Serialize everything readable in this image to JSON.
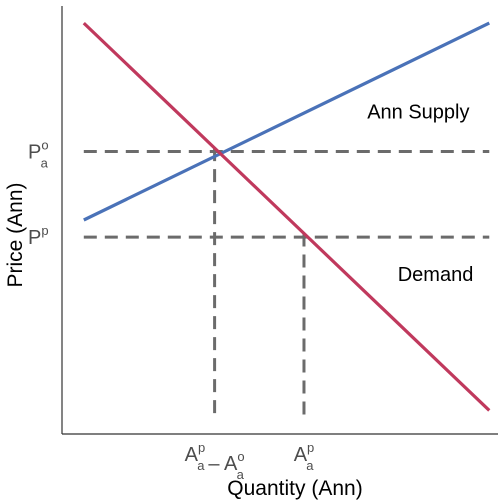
{
  "chart_data": {
    "type": "line",
    "xlabel": "Quantity (Ann)",
    "ylabel": "Price (Ann)",
    "xlim": [
      0,
      10
    ],
    "ylim": [
      0,
      10
    ],
    "grid": false,
    "series": [
      {
        "name": "Ann Supply",
        "color": "#4a72b8",
        "x": [
          0.5,
          9.8
        ],
        "y": [
          5.0,
          9.6
        ]
      },
      {
        "name": "Demand",
        "color": "#c0395d",
        "x": [
          0.5,
          9.8
        ],
        "y": [
          9.6,
          0.55
        ]
      }
    ],
    "reference_lines": [
      {
        "orientation": "horizontal",
        "value": 6.6,
        "label": {
          "base": "P",
          "sup": "o",
          "sub": "a"
        }
      },
      {
        "orientation": "horizontal",
        "value": 4.6,
        "label": {
          "base": "P",
          "sup": "p",
          "sub": ""
        }
      },
      {
        "orientation": "vertical",
        "value": 3.5,
        "label": {
          "terms": [
            {
              "base": "A",
              "sup": "p",
              "sub": "a"
            },
            {
              "op": "–"
            },
            {
              "base": "A",
              "sup": "o",
              "sub": "a"
            }
          ]
        }
      },
      {
        "orientation": "vertical",
        "value": 5.55,
        "label": {
          "terms": [
            {
              "base": "A",
              "sup": "p",
              "sub": "a"
            }
          ]
        }
      }
    ],
    "line_color_ref": "#6b6b6b"
  }
}
